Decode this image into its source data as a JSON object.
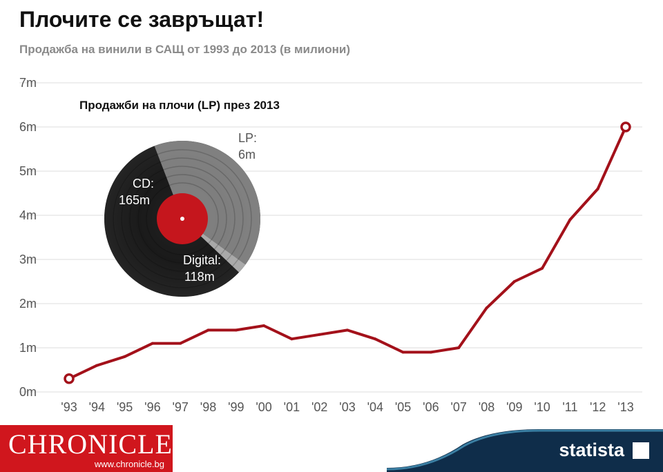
{
  "header": {
    "title": "Плочите се завръщат!",
    "subtitle": "Продажба на винили в САЩ от 1993 до 2013 (в милиони)"
  },
  "chart_data": [
    {
      "type": "line",
      "x": [
        "'93",
        "'94",
        "'95",
        "'96",
        "'97",
        "'98",
        "'99",
        "'00",
        "'01",
        "'02",
        "'03",
        "'04",
        "'05",
        "'06",
        "'07",
        "'08",
        "'09",
        "'10",
        "'11",
        "'12",
        "'13"
      ],
      "series": [
        {
          "values": [
            0.3,
            0.6,
            0.8,
            1.1,
            1.1,
            1.4,
            1.4,
            1.5,
            1.2,
            1.3,
            1.4,
            1.2,
            0.9,
            0.9,
            1.0,
            1.9,
            2.5,
            2.8,
            3.9,
            4.6,
            6.0
          ]
        }
      ],
      "ylim": [
        0,
        7
      ],
      "yticks": [
        "0m",
        "1m",
        "2m",
        "3m",
        "4m",
        "5m",
        "6m",
        "7m"
      ],
      "grid": true,
      "line_color": "#a3111a",
      "highlighted_points": [
        "'93",
        "'13"
      ]
    },
    {
      "type": "pie",
      "title": "Продажби на плочи (LP) през 2013",
      "slices": [
        {
          "label": "CD:",
          "value_label": "165m",
          "value": 165
        },
        {
          "label": "Digital:",
          "value_label": "118m",
          "value": 118
        },
        {
          "label": "LP:",
          "value_label": "6m",
          "value": 6
        }
      ],
      "record_label_color": "#c5161d"
    }
  ],
  "footer": {
    "brand": "CHRONICLE",
    "brand_url": "www.chronicle.bg",
    "source": "statista",
    "brand_color": "#d0161d",
    "source_color": "#0f2d4a"
  }
}
